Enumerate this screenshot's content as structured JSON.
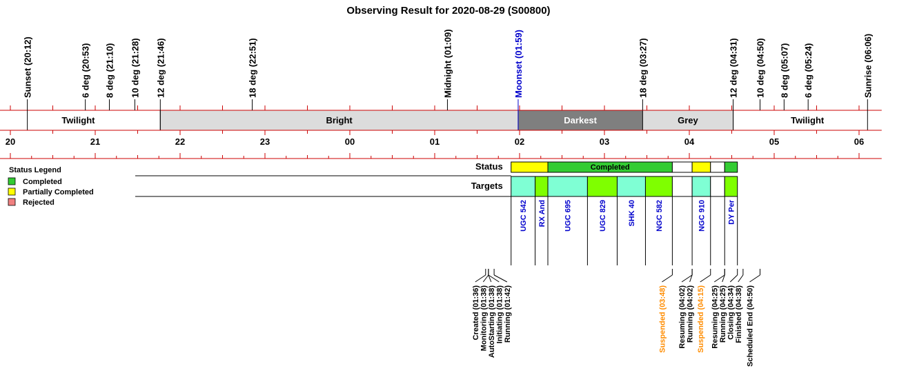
{
  "chart_data": {
    "type": "timeline",
    "title": "Observing Result for 2020-08-29 (S00800)",
    "x_axis": {
      "unit": "hour",
      "range": [
        "19:50",
        "06:16"
      ],
      "ticks": [
        "20",
        "21",
        "22",
        "23",
        "00",
        "01",
        "02",
        "03",
        "04",
        "05",
        "06"
      ]
    },
    "events": [
      {
        "label": "Sunset (20:12)",
        "time": "20:12",
        "color": "#000000"
      },
      {
        "label": "6 deg (20:53)",
        "time": "20:53",
        "color": "#000000"
      },
      {
        "label": "8 deg (21:10)",
        "time": "21:10",
        "color": "#000000"
      },
      {
        "label": "10 deg (21:28)",
        "time": "21:28",
        "color": "#000000"
      },
      {
        "label": "12 deg (21:46)",
        "time": "21:46",
        "color": "#000000"
      },
      {
        "label": "18 deg (22:51)",
        "time": "22:51",
        "color": "#000000"
      },
      {
        "label": "Midnight (01:09)",
        "time": "01:09",
        "color": "#000000"
      },
      {
        "label": "Moonset (01:59)",
        "time": "01:59",
        "color": "#0000cc"
      },
      {
        "label": "18 deg (03:27)",
        "time": "03:27",
        "color": "#000000"
      },
      {
        "label": "12 deg (04:31)",
        "time": "04:31",
        "color": "#000000"
      },
      {
        "label": "10 deg (04:50)",
        "time": "04:50",
        "color": "#000000"
      },
      {
        "label": "8 deg (05:07)",
        "time": "05:07",
        "color": "#000000"
      },
      {
        "label": "6 deg (05:24)",
        "time": "05:24",
        "color": "#000000"
      },
      {
        "label": "Sunrise (06:06)",
        "time": "06:06",
        "color": "#000000"
      }
    ],
    "sky_bands": [
      {
        "label": "Twilight",
        "start": "19:50",
        "end": "21:46",
        "color": "#ffffff",
        "text_color": "#000000"
      },
      {
        "label": "Bright",
        "start": "21:46",
        "end": "01:59",
        "color": "#dcdcdc",
        "text_color": "#000000"
      },
      {
        "label": "Darkest",
        "start": "01:59",
        "end": "03:27",
        "color": "#7f7f7f",
        "text_color": "#ffffff"
      },
      {
        "label": "Grey",
        "start": "03:27",
        "end": "04:31",
        "color": "#dcdcdc",
        "text_color": "#000000"
      },
      {
        "label": "Twilight",
        "start": "04:31",
        "end": "06:16",
        "color": "#ffffff",
        "text_color": "#000000"
      }
    ],
    "legend": {
      "title": "Status Legend",
      "placement": "left",
      "items": [
        {
          "label": "Completed",
          "color": "#33cc33"
        },
        {
          "label": "Partially Completed",
          "color": "#ffff00"
        },
        {
          "label": "Rejected",
          "color": "#f08080"
        }
      ]
    },
    "rows": {
      "status_label": "Status",
      "targets_label": "Targets"
    },
    "status_segments": [
      {
        "start": "01:54",
        "end": "02:20",
        "color": "#ffff00",
        "label": ""
      },
      {
        "start": "02:20",
        "end": "03:48",
        "color": "#33cc33",
        "label": "Completed"
      },
      {
        "start": "03:48",
        "end": "04:02",
        "color": "#ffffff",
        "label": ""
      },
      {
        "start": "04:02",
        "end": "04:15",
        "color": "#ffff00",
        "label": ""
      },
      {
        "start": "04:15",
        "end": "04:25",
        "color": "#ffffff",
        "label": ""
      },
      {
        "start": "04:25",
        "end": "04:34",
        "color": "#33cc33",
        "label": ""
      }
    ],
    "targets": [
      {
        "name": "UGC 542",
        "start": "01:54",
        "end": "02:11",
        "color": "#7fffd4"
      },
      {
        "name": "RX And",
        "start": "02:11",
        "end": "02:20",
        "color": "#7fff00"
      },
      {
        "name": "UGC 695",
        "start": "02:20",
        "end": "02:48",
        "color": "#7fffd4"
      },
      {
        "name": "UGC 829",
        "start": "02:48",
        "end": "03:09",
        "color": "#7fff00"
      },
      {
        "name": "SHK 40",
        "start": "03:09",
        "end": "03:29",
        "color": "#7fffd4"
      },
      {
        "name": "NGC 582",
        "start": "03:29",
        "end": "03:48",
        "color": "#7fff00"
      },
      {
        "name": "",
        "start": "03:48",
        "end": "04:02",
        "color": "#ffffff"
      },
      {
        "name": "NGC 910",
        "start": "04:02",
        "end": "04:15",
        "color": "#7fffd4"
      },
      {
        "name": "",
        "start": "04:15",
        "end": "04:25",
        "color": "#ffffff"
      },
      {
        "name": "DY Per",
        "start": "04:25",
        "end": "04:34",
        "color": "#7fff00"
      }
    ],
    "log_events": [
      {
        "label": "Created (01:36)",
        "time": "01:36",
        "color": "#000000"
      },
      {
        "label": "Monitoring (01:38)",
        "time": "01:38",
        "color": "#000000"
      },
      {
        "label": "AutoStarting (01:38)",
        "time": "01:38",
        "color": "#000000"
      },
      {
        "label": "Initiating (01:38)",
        "time": "01:38",
        "color": "#000000"
      },
      {
        "label": "Running (01:42)",
        "time": "01:42",
        "color": "#000000"
      },
      {
        "label": "Suspended (03:48)",
        "time": "03:48",
        "color": "#ff8c00"
      },
      {
        "label": "Resuming (04:02)",
        "time": "04:02",
        "color": "#000000"
      },
      {
        "label": "Running (04:02)",
        "time": "04:02",
        "color": "#000000"
      },
      {
        "label": "Suspended (04:15)",
        "time": "04:15",
        "color": "#ff8c00"
      },
      {
        "label": "Resuming (04:25)",
        "time": "04:25",
        "color": "#000000"
      },
      {
        "label": "Running (04:25)",
        "time": "04:25",
        "color": "#000000"
      },
      {
        "label": "Closing (04:34)",
        "time": "04:34",
        "color": "#000000"
      },
      {
        "label": "Finished (04:38)",
        "time": "04:38",
        "color": "#000000"
      },
      {
        "label": "Scheduled End (04:50)",
        "time": "04:50",
        "color": "#000000"
      }
    ],
    "colors": {
      "axis_line": "#cc0000",
      "target_label": "#0000cc"
    }
  }
}
